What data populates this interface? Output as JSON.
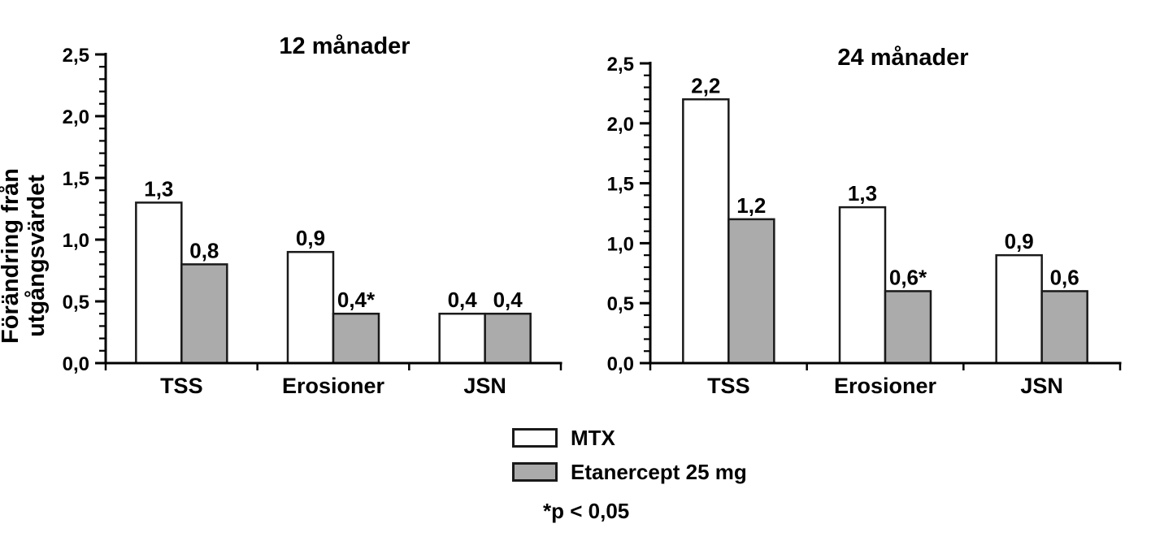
{
  "legend": {
    "items": [
      {
        "label": "MTX",
        "swatch": "mtx"
      },
      {
        "label": "Etanercept 25 mg",
        "swatch": "etanercept"
      }
    ],
    "note": "*p < 0,05"
  },
  "colors": {
    "mtx_fill": "#FFFFFF",
    "etanercept_fill": "#ABABAB",
    "bar_stroke": "#1A1A1A",
    "axis": "#000000",
    "text": "#000000"
  },
  "chart_data": [
    {
      "type": "bar",
      "title": "12 månader",
      "ylabel": "Förändring från utgångsvärdet",
      "ylabel_lines": [
        "Förändring från",
        "utgångsvärdet"
      ],
      "categories": [
        "TSS",
        "Erosioner",
        "JSN"
      ],
      "series": [
        {
          "name": "MTX",
          "values": [
            1.3,
            0.9,
            0.4
          ],
          "value_labels": [
            "1,3",
            "0,9",
            "0,4"
          ]
        },
        {
          "name": "Etanercept 25 mg",
          "values": [
            0.8,
            0.4,
            0.4
          ],
          "value_labels": [
            "0,8",
            "0,4*",
            "0,4"
          ]
        }
      ],
      "ylim": [
        0,
        2.5
      ],
      "ytick_step": 0.5,
      "minor_tick_step": 0.1,
      "ytick_labels": [
        "0,0",
        "0,5",
        "1,0",
        "1,5",
        "2,0",
        "2,5"
      ],
      "grid": false,
      "legend_position": "bottom-center"
    },
    {
      "type": "bar",
      "title": "24 månader",
      "ylabel": "",
      "ylabel_lines": [],
      "categories": [
        "TSS",
        "Erosioner",
        "JSN"
      ],
      "series": [
        {
          "name": "MTX",
          "values": [
            2.2,
            1.3,
            0.9
          ],
          "value_labels": [
            "2,2",
            "1,3",
            "0,9"
          ]
        },
        {
          "name": "Etanercept 25 mg",
          "values": [
            1.2,
            0.6,
            0.6
          ],
          "value_labels": [
            "1,2",
            "0,6*",
            "0,6"
          ]
        }
      ],
      "ylim": [
        0,
        2.5
      ],
      "ytick_step": 0.5,
      "minor_tick_step": 0.1,
      "ytick_labels": [
        "0,0",
        "0,5",
        "1,0",
        "1,5",
        "2,0",
        "2,5"
      ],
      "grid": false,
      "legend_position": "bottom-center"
    }
  ]
}
